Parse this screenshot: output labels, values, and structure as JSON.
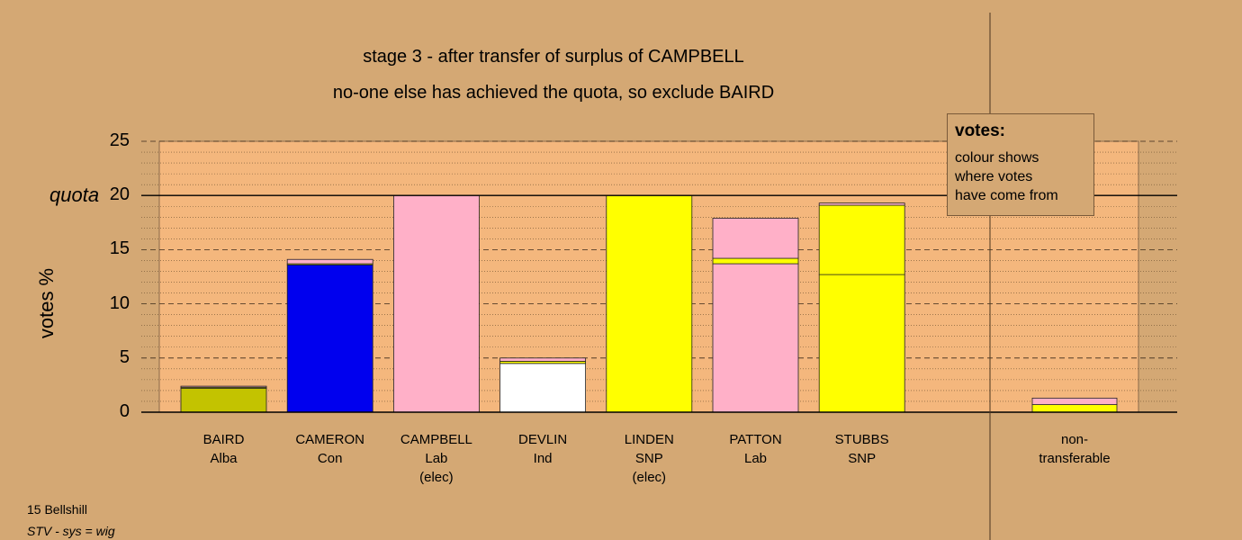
{
  "title": "stage 3 - after transfer of surplus of CAMPBELL",
  "subtitle": "no-one else has achieved the quota, so exclude BAIRD",
  "legend": {
    "heading": "votes:",
    "lines": [
      "colour shows",
      "where votes",
      "have come from"
    ]
  },
  "footer": {
    "ward": "15 Bellshill",
    "system": "STV - sys = wig"
  },
  "colors": {
    "background": "#d4a874",
    "plot_area": "#f4b77d",
    "alba": "#c3c300",
    "con": "#0000ee",
    "lab": "#ffb0c8",
    "ind": "#ffffff",
    "snp": "#ffff00"
  },
  "chart_data": {
    "type": "bar",
    "stacked": true,
    "ylabel": "votes %",
    "ylim": [
      0,
      25
    ],
    "yticks": [
      0,
      5,
      10,
      15,
      20,
      25
    ],
    "quota": 20,
    "quota_label": "quota",
    "grid": true,
    "legend_placement": "top-right",
    "candidates": [
      {
        "name": "BAIRD",
        "party": "Alba",
        "note": "",
        "segments": [
          {
            "from": "alba",
            "value": 2.2
          },
          {
            "from": "snp",
            "value": 0.1
          },
          {
            "from": "lab",
            "value": 0.1
          }
        ]
      },
      {
        "name": "CAMERON",
        "party": "Con",
        "note": "",
        "segments": [
          {
            "from": "con",
            "value": 13.6
          },
          {
            "from": "snp",
            "value": 0.1
          },
          {
            "from": "lab",
            "value": 0.4
          }
        ]
      },
      {
        "name": "CAMPBELL",
        "party": "Lab",
        "note": "(elec)",
        "segments": [
          {
            "from": "lab",
            "value": 20.0
          }
        ]
      },
      {
        "name": "DEVLIN",
        "party": "Ind",
        "note": "",
        "segments": [
          {
            "from": "ind",
            "value": 4.5
          },
          {
            "from": "snp",
            "value": 0.2
          },
          {
            "from": "lab",
            "value": 0.3
          }
        ]
      },
      {
        "name": "LINDEN",
        "party": "SNP",
        "note": "(elec)",
        "segments": [
          {
            "from": "snp",
            "value": 20.0
          }
        ]
      },
      {
        "name": "PATTON",
        "party": "Lab",
        "note": "",
        "segments": [
          {
            "from": "lab",
            "value": 13.7
          },
          {
            "from": "snp",
            "value": 0.5
          },
          {
            "from": "lab",
            "value": 3.7
          }
        ]
      },
      {
        "name": "STUBBS",
        "party": "SNP",
        "note": "",
        "segments": [
          {
            "from": "snp",
            "value": 12.7
          },
          {
            "from": "snp",
            "value": 6.4
          },
          {
            "from": "lab",
            "value": 0.2
          }
        ]
      }
    ],
    "nontransferable": {
      "label_line1": "non-",
      "label_line2": "transferable",
      "segments": [
        {
          "from": "snp",
          "value": 0.7
        },
        {
          "from": "lab",
          "value": 0.6
        }
      ]
    }
  }
}
